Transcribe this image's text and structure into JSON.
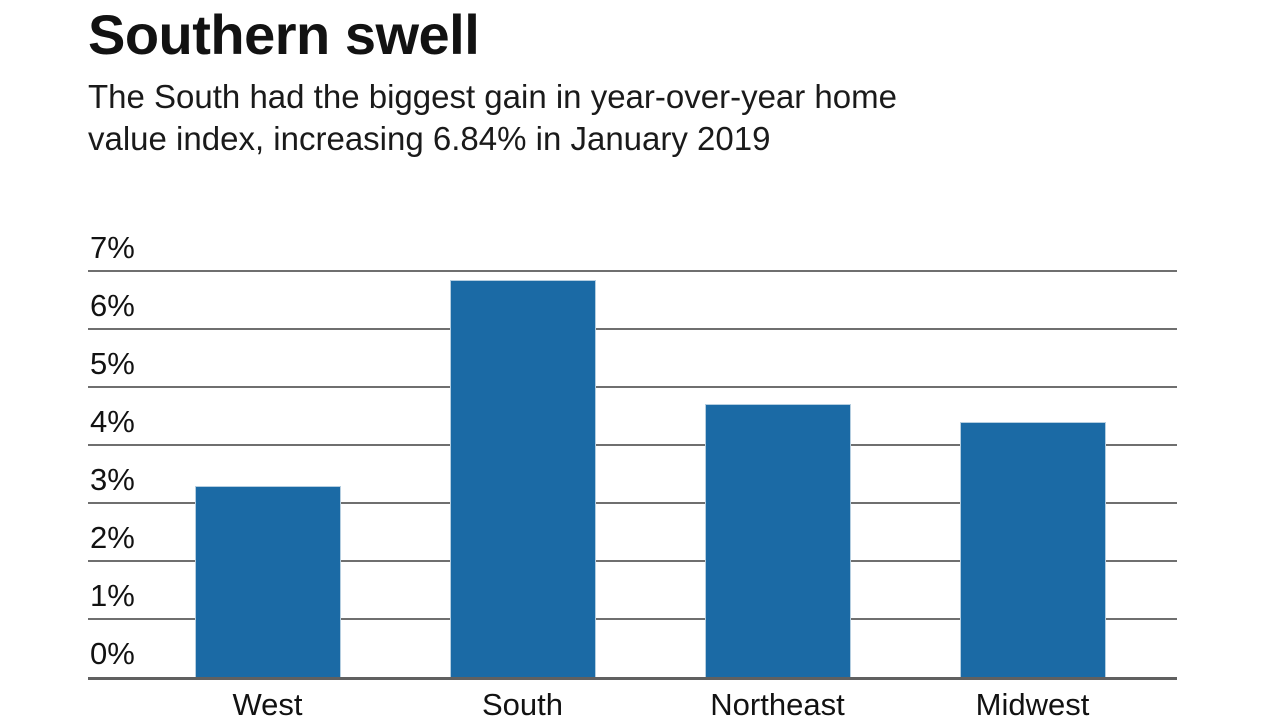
{
  "header": {
    "title": "Southern swell",
    "subtitle_lines": [
      "The South had the biggest gain in year-over-year home",
      "value index, increasing 6.84% in January 2019"
    ]
  },
  "chart_data": {
    "type": "bar",
    "title": "Southern swell",
    "subtitle": "The South had the biggest gain in year-over-year home value index, increasing 6.84% in January 2019",
    "categories": [
      "West",
      "South",
      "Northeast",
      "Midwest"
    ],
    "values": [
      3.3,
      6.84,
      4.7,
      4.4
    ],
    "xlabel": "",
    "ylabel": "",
    "ylim": [
      0,
      7
    ],
    "yticks": [
      7,
      6,
      5,
      4,
      3,
      2,
      1,
      0
    ],
    "tick_suffix": "%",
    "grid": "horizontal",
    "legend": "none",
    "colors": {
      "bar": "#1b6aa5",
      "bar_edge": "#b5cee0",
      "gridline": "#6f6f6f",
      "baseline": "#606060",
      "text": "#121212"
    }
  }
}
